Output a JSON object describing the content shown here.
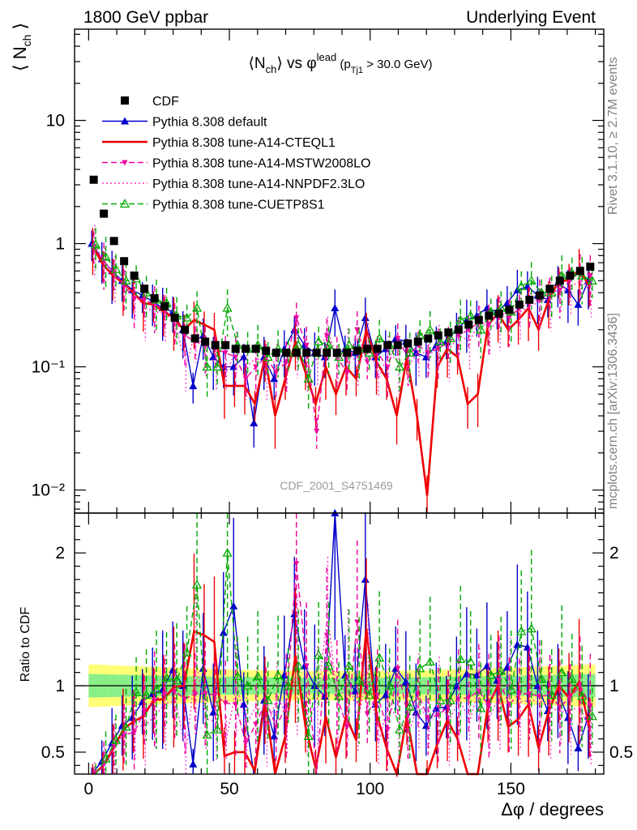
{
  "header": {
    "left": "1800 GeV ppbar",
    "right": "Underlying Event"
  },
  "side_labels": {
    "rivet": "Rivet 3.1.10, ≥ 2.7M events",
    "mcplots": "mcplots.cern.ch [arXiv:1306.3436]"
  },
  "watermark": "CDF_2001_S4751469",
  "chart_data": {
    "type": "line",
    "title": "<N_ch> vs φ^lead (p_Tj1 > 30.0 GeV)",
    "title_parts": {
      "a": "⟨N",
      "a_sub": "ch",
      "b": "⟩ vs φ",
      "b_sup": "lead",
      "c": " (p",
      "c_sub": "Tj1",
      "d": " > 30.0 GeV)"
    },
    "ylabel_parts": {
      "a": "⟨ N",
      "sub": "ch",
      "b": " ⟩"
    },
    "xlabel": "Δφ / degrees",
    "ratio_ylabel": "Ratio to CDF",
    "xlim": [
      -5,
      183
    ],
    "ylim": [
      0.0065,
      55
    ],
    "yscale": "log",
    "ratio_ylim": [
      0.335,
      2.3
    ],
    "x_ticks": [
      "0",
      "50",
      "100",
      "150"
    ],
    "y_ticks": [
      "10⁻²",
      "10⁻¹",
      "1",
      "10"
    ],
    "ratio_ticks": [
      "0.5",
      "1",
      "2"
    ],
    "legend_position": "top-left",
    "x": [
      1.8,
      5.4,
      9.0,
      12.6,
      16.2,
      19.8,
      23.4,
      27.0,
      30.6,
      34.2,
      37.8,
      41.4,
      45.0,
      48.6,
      52.2,
      55.8,
      59.4,
      63.0,
      66.6,
      70.2,
      73.8,
      77.4,
      81.0,
      84.6,
      88.2,
      91.8,
      95.4,
      99.0,
      102.6,
      106.2,
      109.8,
      113.4,
      117.0,
      120.6,
      124.2,
      127.8,
      131.4,
      135.0,
      138.6,
      142.2,
      145.8,
      149.4,
      153.0,
      156.6,
      160.2,
      163.8,
      167.4,
      171.0,
      174.6,
      178.2
    ],
    "data": {
      "name": "CDF",
      "values": [
        3.3,
        1.75,
        1.05,
        0.72,
        0.55,
        0.43,
        0.36,
        0.31,
        0.25,
        0.2,
        0.17,
        0.16,
        0.15,
        0.15,
        0.14,
        0.14,
        0.14,
        0.135,
        0.13,
        0.13,
        0.13,
        0.13,
        0.13,
        0.13,
        0.13,
        0.13,
        0.135,
        0.14,
        0.14,
        0.15,
        0.15,
        0.155,
        0.16,
        0.17,
        0.18,
        0.19,
        0.2,
        0.22,
        0.24,
        0.26,
        0.27,
        0.29,
        0.32,
        0.35,
        0.38,
        0.43,
        0.5,
        0.55,
        0.6,
        0.65
      ]
    },
    "series": [
      {
        "name": "Pythia 8.308 default",
        "color": "#0000cc",
        "linestyle": "solid",
        "marker": "triangle-filled",
        "values": [
          1.0,
          0.75,
          0.6,
          0.5,
          0.42,
          0.38,
          0.34,
          0.3,
          0.28,
          0.2,
          0.07,
          0.18,
          0.12,
          0.1,
          0.1,
          0.12,
          0.035,
          0.12,
          0.08,
          0.14,
          0.2,
          0.15,
          0.13,
          0.12,
          0.3,
          0.14,
          0.13,
          0.25,
          0.12,
          0.14,
          0.17,
          0.16,
          0.13,
          0.12,
          0.15,
          0.16,
          0.2,
          0.24,
          0.26,
          0.3,
          0.28,
          0.33,
          0.42,
          0.45,
          0.38,
          0.35,
          0.48,
          0.42,
          0.32,
          0.5
        ],
        "ratio": [
          0.3,
          0.43,
          0.57,
          0.7,
          0.76,
          0.88,
          0.94,
          0.97,
          1.12,
          1.0,
          0.41,
          1.13,
          0.8,
          1.4,
          1.6,
          0.86,
          0.25,
          0.89,
          0.62,
          1.08,
          1.54,
          1.15,
          1.0,
          0.92,
          2.3,
          1.08,
          0.96,
          1.8,
          0.86,
          0.93,
          1.13,
          1.03,
          0.8,
          0.7,
          0.83,
          0.84,
          1.0,
          1.09,
          1.08,
          1.15,
          1.04,
          1.14,
          1.31,
          1.29,
          1.0,
          0.81,
          0.96,
          0.76,
          0.53,
          0.77
        ]
      },
      {
        "name": "Pythia 8.308 tune-A14-CTEQL1",
        "color": "#ee0000",
        "linestyle": "solid",
        "marker": "none",
        "values": [
          0.95,
          0.68,
          0.55,
          0.48,
          0.4,
          0.33,
          0.32,
          0.28,
          0.25,
          0.2,
          0.24,
          0.22,
          0.2,
          0.07,
          0.07,
          0.07,
          0.05,
          0.12,
          0.04,
          0.08,
          0.16,
          0.09,
          0.05,
          0.1,
          0.06,
          0.1,
          0.08,
          0.2,
          0.11,
          0.08,
          0.04,
          0.12,
          0.04,
          0.009,
          0.1,
          0.14,
          0.12,
          0.05,
          0.06,
          0.22,
          0.27,
          0.2,
          0.24,
          0.3,
          0.2,
          0.35,
          0.5,
          0.5,
          0.62,
          0.45
        ],
        "ratio": [
          0.29,
          0.39,
          0.52,
          0.67,
          0.73,
          0.77,
          0.89,
          0.9,
          0.99,
          1.0,
          1.41,
          1.38,
          1.33,
          0.47,
          0.5,
          0.5,
          0.36,
          0.89,
          0.31,
          0.62,
          1.23,
          0.69,
          0.38,
          0.77,
          0.46,
          0.77,
          0.59,
          1.43,
          0.79,
          0.53,
          0.27,
          0.77,
          0.25,
          0.3,
          0.56,
          0.74,
          0.6,
          0.23,
          0.25,
          0.85,
          1.0,
          0.69,
          0.75,
          0.86,
          0.53,
          0.81,
          1.0,
          0.91,
          1.03,
          0.69
        ]
      },
      {
        "name": "Pythia 8.308 tune-A14-MSTW2008LO",
        "color": "#ee0099",
        "linestyle": "dashed",
        "marker": "triangle-down",
        "values": [
          0.95,
          0.72,
          0.58,
          0.45,
          0.36,
          0.35,
          0.32,
          0.29,
          0.24,
          0.18,
          0.16,
          0.15,
          0.14,
          0.13,
          0.12,
          0.08,
          0.1,
          0.12,
          0.09,
          0.11,
          0.25,
          0.15,
          0.03,
          0.18,
          0.12,
          0.09,
          0.2,
          0.11,
          0.13,
          0.1,
          0.17,
          0.12,
          0.15,
          0.13,
          0.14,
          0.16,
          0.18,
          0.2,
          0.23,
          0.22,
          0.28,
          0.25,
          0.3,
          0.33,
          0.35,
          0.4,
          0.42,
          0.5,
          0.6,
          0.55
        ],
        "ratio": [
          0.29,
          0.41,
          0.55,
          0.63,
          0.65,
          0.81,
          0.89,
          0.94,
          0.96,
          0.9,
          0.94,
          0.94,
          0.93,
          0.87,
          0.86,
          0.57,
          0.71,
          0.89,
          0.69,
          0.85,
          1.92,
          1.15,
          0.23,
          1.38,
          0.92,
          0.69,
          1.48,
          0.79,
          0.93,
          0.67,
          1.13,
          0.77,
          0.94,
          0.76,
          0.78,
          0.84,
          0.9,
          0.91,
          0.96,
          0.85,
          1.04,
          0.86,
          0.94,
          0.94,
          0.92,
          0.93,
          0.84,
          0.91,
          1.0,
          0.85
        ]
      },
      {
        "name": "Pythia 8.308 tune-A14-NNPDF2.3LO",
        "color": "#ff33cc",
        "linestyle": "dotted",
        "marker": "none",
        "values": [
          0.97,
          0.7,
          0.56,
          0.47,
          0.38,
          0.3,
          0.28,
          0.27,
          0.22,
          0.1,
          0.2,
          0.12,
          0.11,
          0.09,
          0.14,
          0.1,
          0.12,
          0.09,
          0.12,
          0.1,
          0.15,
          0.09,
          0.12,
          0.2,
          0.11,
          0.14,
          0.1,
          0.16,
          0.08,
          0.13,
          0.11,
          0.1,
          0.14,
          0.12,
          0.16,
          0.14,
          0.18,
          0.16,
          0.24,
          0.2,
          0.25,
          0.3,
          0.28,
          0.31,
          0.34,
          0.36,
          0.4,
          0.45,
          0.5,
          0.4
        ],
        "ratio": [
          0.29,
          0.4,
          0.53,
          0.65,
          0.69,
          0.7,
          0.78,
          0.87,
          0.88,
          0.5,
          1.18,
          0.75,
          0.73,
          0.6,
          1.0,
          0.71,
          0.86,
          0.67,
          0.92,
          0.77,
          1.15,
          0.69,
          0.92,
          1.54,
          0.85,
          1.08,
          0.74,
          1.14,
          0.57,
          0.87,
          0.73,
          0.65,
          0.88,
          0.71,
          0.89,
          0.74,
          0.9,
          0.73,
          1.0,
          0.77,
          0.93,
          1.03,
          0.88,
          0.89,
          0.89,
          0.84,
          0.8,
          0.82,
          0.83,
          0.62
        ]
      },
      {
        "name": "Pythia 8.308 tune-CUETP8S1",
        "color": "#00aa00",
        "linestyle": "dashed",
        "marker": "triangle-open",
        "values": [
          0.98,
          0.78,
          0.62,
          0.5,
          0.52,
          0.4,
          0.35,
          0.33,
          0.26,
          0.25,
          0.3,
          0.1,
          0.1,
          0.3,
          0.15,
          0.14,
          0.15,
          0.12,
          0.14,
          0.13,
          0.15,
          0.08,
          0.16,
          0.15,
          0.12,
          0.15,
          0.14,
          0.13,
          0.17,
          0.15,
          0.1,
          0.13,
          0.18,
          0.2,
          0.16,
          0.17,
          0.24,
          0.26,
          0.2,
          0.28,
          0.3,
          0.28,
          0.45,
          0.5,
          0.4,
          0.4,
          0.55,
          0.58,
          0.55,
          0.5
        ],
        "ratio": [
          0.3,
          0.45,
          0.59,
          0.69,
          0.95,
          0.93,
          0.97,
          1.06,
          1.04,
          1.25,
          1.76,
          0.63,
          0.67,
          2.0,
          1.07,
          1.0,
          1.07,
          0.89,
          1.08,
          1.0,
          1.15,
          0.62,
          1.23,
          1.15,
          0.92,
          1.15,
          1.04,
          0.93,
          1.21,
          1.0,
          0.67,
          0.84,
          1.13,
          1.18,
          0.89,
          0.89,
          1.2,
          1.18,
          0.83,
          1.08,
          1.11,
          0.97,
          1.41,
          1.43,
          1.05,
          0.93,
          1.1,
          1.05,
          0.92,
          0.77
        ]
      }
    ],
    "bands": {
      "inner_color": "#88ee88",
      "outer_color": "#ffff77"
    },
    "grid": false
  }
}
